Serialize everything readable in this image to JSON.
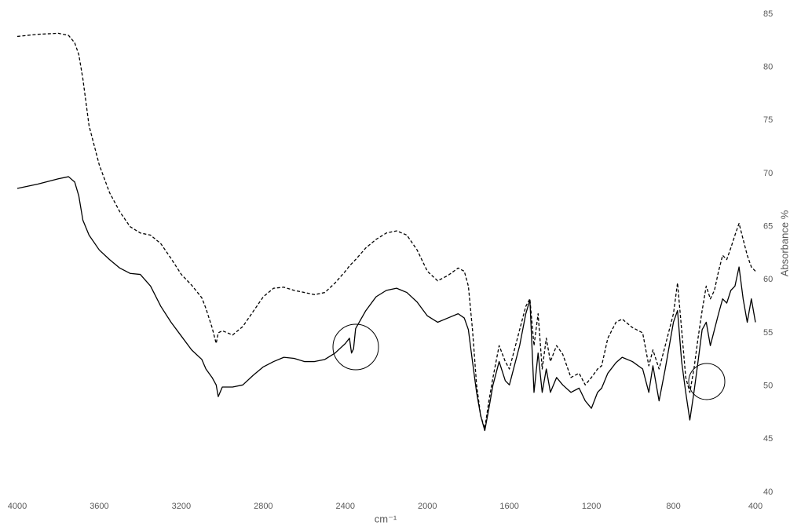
{
  "chart_data": {
    "type": "line",
    "x_label": "cm⁻¹",
    "y_label": "Absorbance %",
    "y_axis_position": "right",
    "xlim": [
      4000,
      400
    ],
    "xticks": [
      4000,
      3600,
      3200,
      2800,
      2400,
      2000,
      1600,
      1200,
      800,
      400
    ],
    "ylim": [
      40,
      85
    ],
    "yticks": [
      40,
      45,
      50,
      55,
      60,
      65,
      70,
      75,
      80,
      85
    ],
    "grid": false,
    "x": [
      4000,
      3900,
      3800,
      3750,
      3720,
      3700,
      3680,
      3650,
      3600,
      3550,
      3500,
      3450,
      3400,
      3350,
      3300,
      3250,
      3200,
      3150,
      3100,
      3080,
      3050,
      3030,
      3020,
      3000,
      2950,
      2900,
      2850,
      2800,
      2750,
      2700,
      2650,
      2600,
      2550,
      2500,
      2450,
      2400,
      2380,
      2370,
      2360,
      2350,
      2300,
      2250,
      2200,
      2150,
      2100,
      2050,
      2000,
      1950,
      1900,
      1850,
      1820,
      1800,
      1780,
      1760,
      1740,
      1720,
      1700,
      1680,
      1650,
      1620,
      1600,
      1550,
      1520,
      1500,
      1480,
      1460,
      1440,
      1420,
      1400,
      1370,
      1340,
      1300,
      1260,
      1230,
      1200,
      1170,
      1150,
      1120,
      1080,
      1050,
      1000,
      950,
      920,
      900,
      870,
      840,
      800,
      780,
      760,
      740,
      720,
      700,
      680,
      660,
      640,
      620,
      600,
      580,
      560,
      540,
      520,
      500,
      480,
      460,
      440,
      420,
      400
    ],
    "series": [
      {
        "color": "#000000",
        "dashed": true,
        "values": [
          82.9,
          83.1,
          83.2,
          83.0,
          82.3,
          81.2,
          78.9,
          74.5,
          70.8,
          68.2,
          66.4,
          65.0,
          64.4,
          64.2,
          63.4,
          62.0,
          60.5,
          59.5,
          58.3,
          57.3,
          55.5,
          54.0,
          55.0,
          55.2,
          54.8,
          55.6,
          57.0,
          58.4,
          59.2,
          59.3,
          59.0,
          58.8,
          58.6,
          58.8,
          59.7,
          60.8,
          61.3,
          61.5,
          61.7,
          61.9,
          63.0,
          63.8,
          64.4,
          64.6,
          64.2,
          62.8,
          60.8,
          59.9,
          60.4,
          61.1,
          60.8,
          59.4,
          55.3,
          50.1,
          47.2,
          46.0,
          48.6,
          50.8,
          53.8,
          52.3,
          51.6,
          55.3,
          57.5,
          58.2,
          53.8,
          56.8,
          51.6,
          54.5,
          52.3,
          53.8,
          53.0,
          50.8,
          51.2,
          50.1,
          50.8,
          51.6,
          51.9,
          54.5,
          56.0,
          56.3,
          55.5,
          55.0,
          51.9,
          53.4,
          51.6,
          53.8,
          56.8,
          59.7,
          55.3,
          50.8,
          49.4,
          51.6,
          54.5,
          57.1,
          59.4,
          58.2,
          59.0,
          60.8,
          62.3,
          61.9,
          63.0,
          64.2,
          65.3,
          63.8,
          62.3,
          61.2,
          60.8
        ]
      },
      {
        "color": "#000000",
        "dashed": false,
        "values": [
          68.6,
          69.0,
          69.5,
          69.7,
          69.2,
          67.9,
          65.6,
          64.2,
          62.8,
          61.9,
          61.1,
          60.6,
          60.5,
          59.4,
          57.5,
          56.0,
          54.7,
          53.4,
          52.5,
          51.6,
          50.8,
          50.1,
          49.0,
          49.9,
          49.9,
          50.1,
          51.0,
          51.8,
          52.3,
          52.7,
          52.6,
          52.3,
          52.3,
          52.5,
          53.1,
          54.0,
          54.5,
          53.1,
          53.5,
          55.4,
          57.1,
          58.4,
          59.0,
          59.2,
          58.8,
          57.9,
          56.6,
          56.0,
          56.4,
          56.8,
          56.4,
          55.3,
          52.3,
          49.4,
          47.2,
          45.8,
          47.9,
          50.1,
          52.3,
          50.5,
          50.1,
          53.8,
          56.8,
          58.1,
          49.4,
          53.1,
          49.4,
          51.6,
          49.4,
          50.8,
          50.1,
          49.4,
          49.8,
          48.6,
          47.9,
          49.4,
          49.8,
          51.2,
          52.2,
          52.7,
          52.3,
          51.6,
          49.4,
          51.9,
          48.6,
          51.6,
          56.0,
          57.1,
          52.3,
          49.4,
          46.8,
          49.4,
          52.3,
          55.3,
          56.0,
          53.8,
          55.3,
          56.8,
          58.2,
          57.8,
          59.0,
          59.4,
          61.2,
          58.2,
          56.0,
          58.2,
          56.0
        ]
      }
    ]
  }
}
